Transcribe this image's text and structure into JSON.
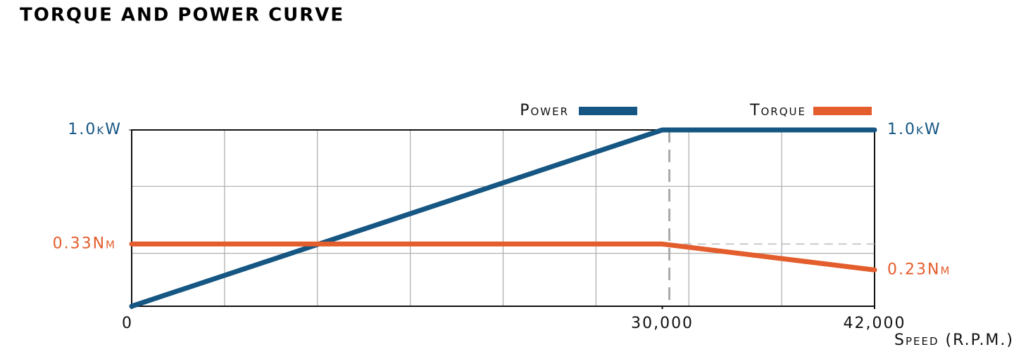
{
  "chart_data": {
    "type": "line",
    "title": "TORQUE AND POWER CURVE",
    "x_label": "Speed (R.P.M.)",
    "x": [
      0,
      30000,
      42000
    ],
    "xlim": [
      0,
      42000
    ],
    "xticks": [
      {
        "value": 0,
        "label": "0"
      },
      {
        "value": 30000,
        "label": "30,000"
      },
      {
        "value": 42000,
        "label": "42,000"
      }
    ],
    "xgrid": [
      5250,
      10500,
      15750,
      21000,
      26250,
      31500,
      36750
    ],
    "ylim": [
      0,
      1
    ],
    "yticks": [
      {
        "value": 1,
        "label": "1.0kW"
      }
    ],
    "ygrid": [
      0.3,
      0.68
    ],
    "y2lim": [
      0.09,
      0.77
    ],
    "series": [
      {
        "name": "Power",
        "color": "#155683",
        "values": [
          0,
          1,
          1
        ],
        "value_labels": [
          null,
          null,
          "1.0kW"
        ]
      },
      {
        "name": "Torque",
        "color": "#e35d2d",
        "axis": "y2",
        "values": [
          0.33,
          0.33,
          0.23
        ],
        "value_labels": [
          "0.33Nm",
          null,
          "0.23Nm"
        ]
      }
    ]
  }
}
